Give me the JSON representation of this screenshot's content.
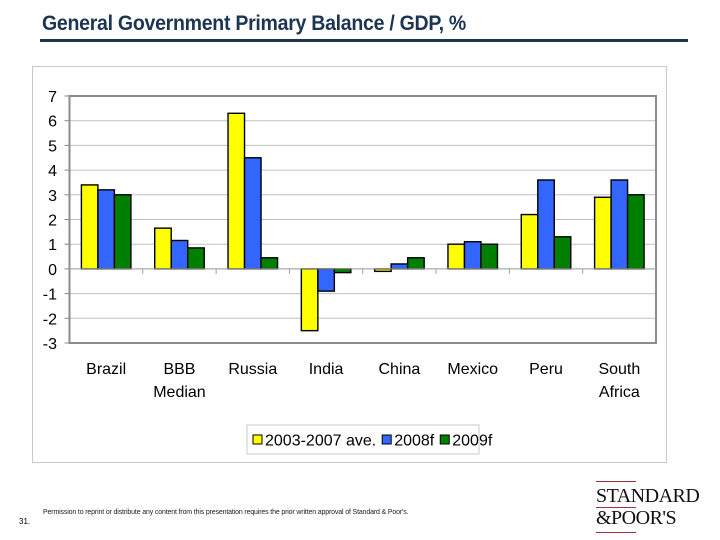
{
  "slide": {
    "title": "General Government Primary Balance / GDP, %",
    "slide_number": "31.",
    "disclaimer": "Permission to reprint or distribute any content from this presentation requires the prior written approval of Standard & Poor's.",
    "logo": {
      "line1": "STANDARD",
      "line2": "&POOR'S",
      "accent_color": "#a3303a"
    }
  },
  "chart_data": {
    "type": "bar",
    "title": "General Government Primary Balance / GDP, %",
    "xlabel": "",
    "ylabel": "",
    "ylim": [
      -3,
      7
    ],
    "yticks": [
      7,
      6,
      5,
      4,
      3,
      2,
      1,
      0,
      -1,
      -2,
      -3
    ],
    "grid": true,
    "legend_position": "bottom",
    "categories": [
      [
        "Brazil"
      ],
      [
        "BBB",
        "Median"
      ],
      [
        "Russia"
      ],
      [
        "India"
      ],
      [
        "China"
      ],
      [
        "Mexico"
      ],
      [
        "Peru"
      ],
      [
        "South",
        "Africa"
      ]
    ],
    "series": [
      {
        "name": "2003-2007 ave.",
        "color": "#ffff00",
        "values": [
          3.4,
          1.65,
          6.3,
          -2.5,
          -0.1,
          1.0,
          2.2,
          2.9
        ]
      },
      {
        "name": "2008f",
        "color": "#3366ff",
        "values": [
          3.2,
          1.15,
          4.5,
          -0.9,
          0.2,
          1.1,
          3.6,
          3.6
        ]
      },
      {
        "name": "2009f",
        "color": "#007f00",
        "values": [
          3.0,
          0.85,
          0.45,
          -0.15,
          0.45,
          1.0,
          1.3,
          3.0
        ]
      }
    ]
  }
}
